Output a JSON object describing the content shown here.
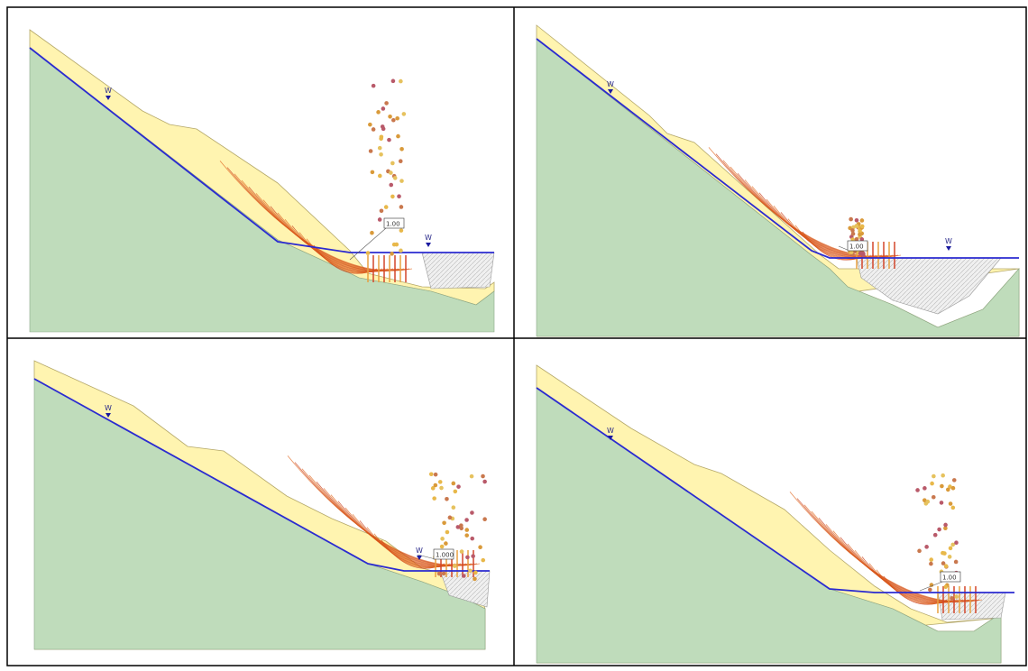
{
  "panels": [
    {
      "water_labels": [
        "W",
        "W"
      ],
      "fs_label": "1.00"
    },
    {
      "water_labels": [
        "W",
        "W"
      ],
      "fs_label": "1.00"
    },
    {
      "water_labels": [
        "W",
        "W"
      ],
      "fs_label": "1.000"
    },
    {
      "water_labels": [
        "W"
      ],
      "fs_label": "1.00"
    }
  ]
}
